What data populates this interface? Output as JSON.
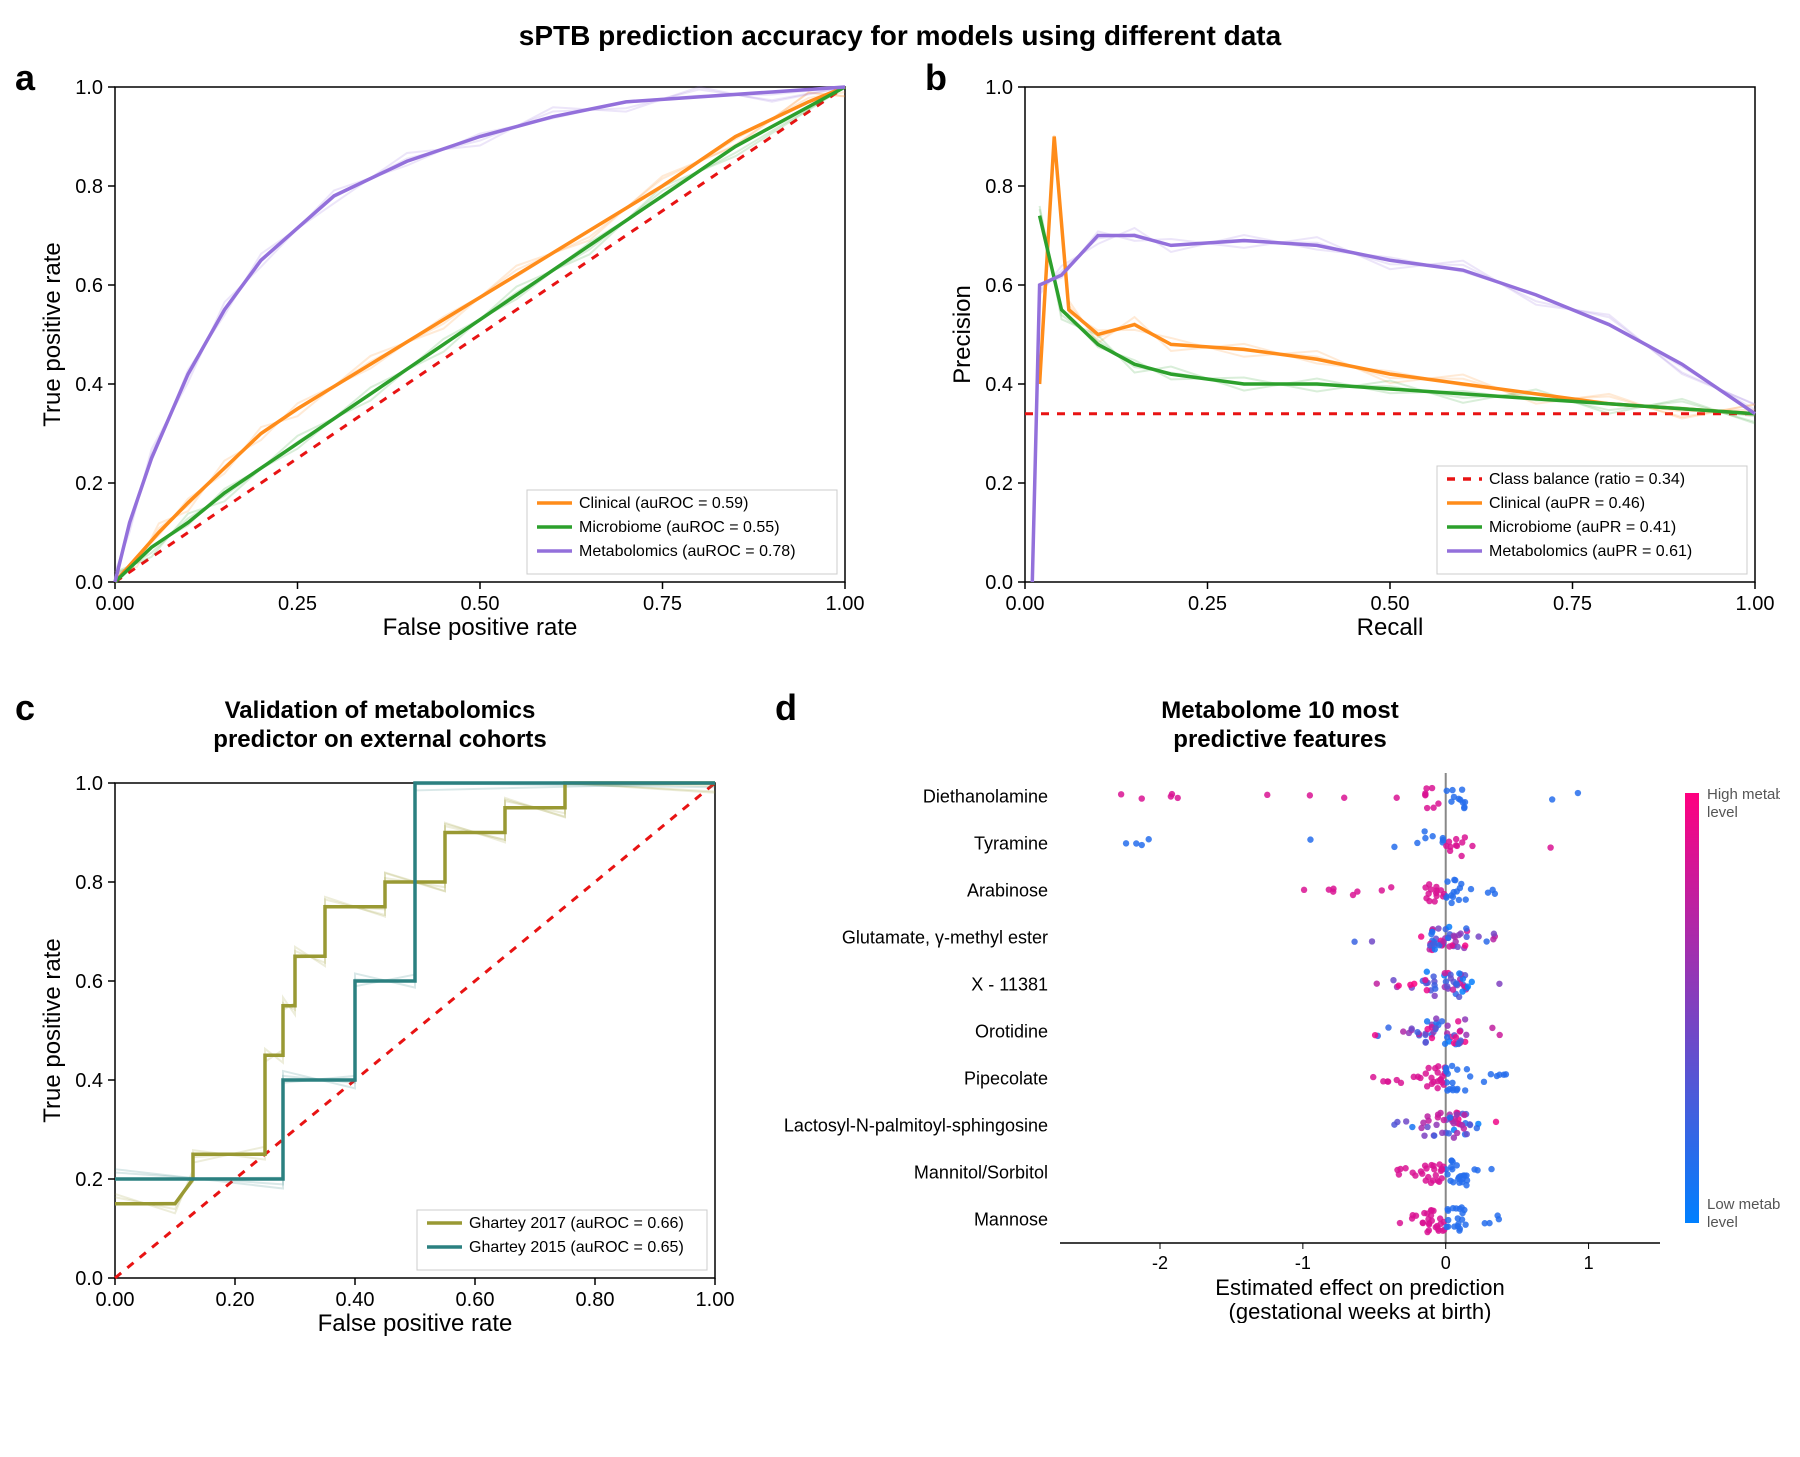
{
  "main_title": "sPTB prediction accuracy for models using different data",
  "panel_a": {
    "letter": "a",
    "xlabel": "False positive rate",
    "ylabel": "True positive rate",
    "xlim": [
      0,
      1
    ],
    "ylim": [
      0,
      1
    ],
    "xticks": [
      0.0,
      0.25,
      0.5,
      0.75,
      1.0
    ],
    "yticks": [
      0.0,
      0.2,
      0.4,
      0.6,
      0.8,
      1.0
    ],
    "diag_color": "#e81313",
    "diag_dash": "8,8",
    "series": [
      {
        "label": "Clinical (auROC = 0.59)",
        "color": "#ff8c1a",
        "pts": [
          [
            0,
            0
          ],
          [
            0.03,
            0.05
          ],
          [
            0.06,
            0.1
          ],
          [
            0.1,
            0.16
          ],
          [
            0.15,
            0.23
          ],
          [
            0.2,
            0.3
          ],
          [
            0.25,
            0.35
          ],
          [
            0.35,
            0.44
          ],
          [
            0.45,
            0.53
          ],
          [
            0.55,
            0.62
          ],
          [
            0.65,
            0.71
          ],
          [
            0.75,
            0.8
          ],
          [
            0.85,
            0.9
          ],
          [
            0.95,
            0.97
          ],
          [
            1,
            1
          ]
        ]
      },
      {
        "label": "Microbiome (auROC = 0.55)",
        "color": "#2ca02c",
        "pts": [
          [
            0,
            0
          ],
          [
            0.05,
            0.07
          ],
          [
            0.1,
            0.12
          ],
          [
            0.15,
            0.18
          ],
          [
            0.25,
            0.28
          ],
          [
            0.35,
            0.38
          ],
          [
            0.45,
            0.48
          ],
          [
            0.55,
            0.58
          ],
          [
            0.65,
            0.68
          ],
          [
            0.75,
            0.78
          ],
          [
            0.85,
            0.88
          ],
          [
            1,
            1
          ]
        ]
      },
      {
        "label": "Metabolomics (auROC = 0.78)",
        "color": "#9370db",
        "pts": [
          [
            0,
            0
          ],
          [
            0.02,
            0.12
          ],
          [
            0.05,
            0.25
          ],
          [
            0.1,
            0.42
          ],
          [
            0.15,
            0.55
          ],
          [
            0.2,
            0.65
          ],
          [
            0.3,
            0.78
          ],
          [
            0.4,
            0.85
          ],
          [
            0.5,
            0.9
          ],
          [
            0.6,
            0.94
          ],
          [
            0.7,
            0.97
          ],
          [
            0.8,
            0.98
          ],
          [
            0.9,
            0.99
          ],
          [
            1,
            1
          ]
        ]
      }
    ],
    "legend_pos": "lower-right",
    "label_fontsize": 24,
    "tick_fontsize": 20
  },
  "panel_b": {
    "letter": "b",
    "xlabel": "Recall",
    "ylabel": "Precision",
    "xlim": [
      0,
      1
    ],
    "ylim": [
      0,
      1
    ],
    "xticks": [
      0.0,
      0.25,
      0.5,
      0.75,
      1.0
    ],
    "yticks": [
      0.0,
      0.2,
      0.4,
      0.6,
      0.8,
      1.0
    ],
    "baseline": {
      "label": "Class balance (ratio = 0.34)",
      "color": "#e81313",
      "y": 0.34,
      "dash": "8,8"
    },
    "series": [
      {
        "label": "Clinical (auPR = 0.46)",
        "color": "#ff8c1a",
        "pts": [
          [
            0.02,
            0.4
          ],
          [
            0.04,
            0.9
          ],
          [
            0.06,
            0.55
          ],
          [
            0.1,
            0.5
          ],
          [
            0.15,
            0.52
          ],
          [
            0.2,
            0.48
          ],
          [
            0.3,
            0.47
          ],
          [
            0.4,
            0.45
          ],
          [
            0.5,
            0.42
          ],
          [
            0.6,
            0.4
          ],
          [
            0.7,
            0.38
          ],
          [
            0.8,
            0.36
          ],
          [
            0.9,
            0.35
          ],
          [
            1.0,
            0.34
          ]
        ]
      },
      {
        "label": "Microbiome (auPR = 0.41)",
        "color": "#2ca02c",
        "pts": [
          [
            0.02,
            0.74
          ],
          [
            0.05,
            0.55
          ],
          [
            0.1,
            0.48
          ],
          [
            0.15,
            0.44
          ],
          [
            0.2,
            0.42
          ],
          [
            0.3,
            0.4
          ],
          [
            0.4,
            0.4
          ],
          [
            0.5,
            0.39
          ],
          [
            0.6,
            0.38
          ],
          [
            0.7,
            0.37
          ],
          [
            0.8,
            0.36
          ],
          [
            0.9,
            0.35
          ],
          [
            1.0,
            0.34
          ]
        ]
      },
      {
        "label": "Metabolomics (auPR = 0.61)",
        "color": "#9370db",
        "pts": [
          [
            0.01,
            0.0
          ],
          [
            0.02,
            0.6
          ],
          [
            0.05,
            0.62
          ],
          [
            0.1,
            0.7
          ],
          [
            0.15,
            0.7
          ],
          [
            0.2,
            0.68
          ],
          [
            0.3,
            0.69
          ],
          [
            0.4,
            0.68
          ],
          [
            0.5,
            0.65
          ],
          [
            0.6,
            0.63
          ],
          [
            0.7,
            0.58
          ],
          [
            0.8,
            0.52
          ],
          [
            0.9,
            0.44
          ],
          [
            1.0,
            0.34
          ]
        ]
      }
    ],
    "legend_pos": "lower-right",
    "label_fontsize": 24,
    "tick_fontsize": 20
  },
  "panel_c": {
    "letter": "c",
    "title": "Validation of metabolomics\npredictor on external cohorts",
    "xlabel": "False positive rate",
    "ylabel": "True positive rate",
    "xlim": [
      0,
      1
    ],
    "ylim": [
      0,
      1
    ],
    "xticks": [
      0.0,
      0.2,
      0.4,
      0.6,
      0.8,
      1.0
    ],
    "yticks": [
      0.0,
      0.2,
      0.4,
      0.6,
      0.8,
      1.0
    ],
    "diag_color": "#e81313",
    "diag_dash": "8,8",
    "series": [
      {
        "label": "Ghartey 2017 (auROC = 0.66)",
        "color": "#999933",
        "pts": [
          [
            0,
            0.15
          ],
          [
            0.1,
            0.15
          ],
          [
            0.13,
            0.2
          ],
          [
            0.13,
            0.25
          ],
          [
            0.25,
            0.25
          ],
          [
            0.25,
            0.45
          ],
          [
            0.28,
            0.45
          ],
          [
            0.28,
            0.55
          ],
          [
            0.3,
            0.55
          ],
          [
            0.3,
            0.65
          ],
          [
            0.35,
            0.65
          ],
          [
            0.35,
            0.75
          ],
          [
            0.45,
            0.75
          ],
          [
            0.45,
            0.8
          ],
          [
            0.55,
            0.8
          ],
          [
            0.55,
            0.9
          ],
          [
            0.65,
            0.9
          ],
          [
            0.65,
            0.95
          ],
          [
            0.75,
            0.95
          ],
          [
            0.75,
            1.0
          ],
          [
            1.0,
            1.0
          ]
        ]
      },
      {
        "label": "Ghartey 2015 (auROC = 0.65)",
        "color": "#2b8080",
        "pts": [
          [
            0,
            0.2
          ],
          [
            0.28,
            0.2
          ],
          [
            0.28,
            0.4
          ],
          [
            0.4,
            0.4
          ],
          [
            0.4,
            0.6
          ],
          [
            0.5,
            0.6
          ],
          [
            0.5,
            1.0
          ],
          [
            1.0,
            1.0
          ]
        ]
      }
    ],
    "legend_pos": "lower-right",
    "label_fontsize": 24,
    "tick_fontsize": 20
  },
  "panel_d": {
    "letter": "d",
    "title": "Metabolome 10 most\npredictive features",
    "xlabel": "Estimated effect on prediction\n(gestational weeks at birth)",
    "xlim": [
      -2.7,
      1.5
    ],
    "xticks": [
      -2,
      -1,
      0,
      1
    ],
    "features": [
      "Diethanolamine",
      "Tyramine",
      "Arabinose",
      "Glutamate, γ-methyl ester",
      "X - 11381",
      "Orotidine",
      "Pipecolate",
      "Lactosyl-N-palmitoyl-sphingosine",
      "Mannitol/Sorbitol",
      "Mannose"
    ],
    "colorbar": {
      "high": "#ff0080",
      "low": "#0080ff",
      "high_label": "High metabolite\nlevel",
      "low_label": "Low metabolite\nlevel"
    },
    "label_fontsize": 22,
    "tick_fontsize": 18,
    "shap_rows": [
      {
        "spread": [
          [
            -2.5,
            1.1,
            30
          ]
        ],
        "skew": "high-neg"
      },
      {
        "spread": [
          [
            -2.4,
            1.3,
            25
          ]
        ],
        "skew": "low-neg"
      },
      {
        "spread": [
          [
            -1.0,
            0.4,
            40
          ]
        ],
        "skew": "high-neg"
      },
      {
        "spread": [
          [
            -0.7,
            0.4,
            50
          ]
        ],
        "skew": "mix"
      },
      {
        "spread": [
          [
            -0.6,
            0.4,
            50
          ]
        ],
        "skew": "mix"
      },
      {
        "spread": [
          [
            -0.5,
            0.4,
            50
          ]
        ],
        "skew": "mix"
      },
      {
        "spread": [
          [
            -0.6,
            0.5,
            50
          ]
        ],
        "skew": "low-pos"
      },
      {
        "spread": [
          [
            -0.4,
            0.4,
            50
          ]
        ],
        "skew": "mix"
      },
      {
        "spread": [
          [
            -0.4,
            0.4,
            50
          ]
        ],
        "skew": "high-neg"
      },
      {
        "spread": [
          [
            -0.4,
            0.4,
            50
          ]
        ],
        "skew": "low-pos"
      }
    ]
  }
}
